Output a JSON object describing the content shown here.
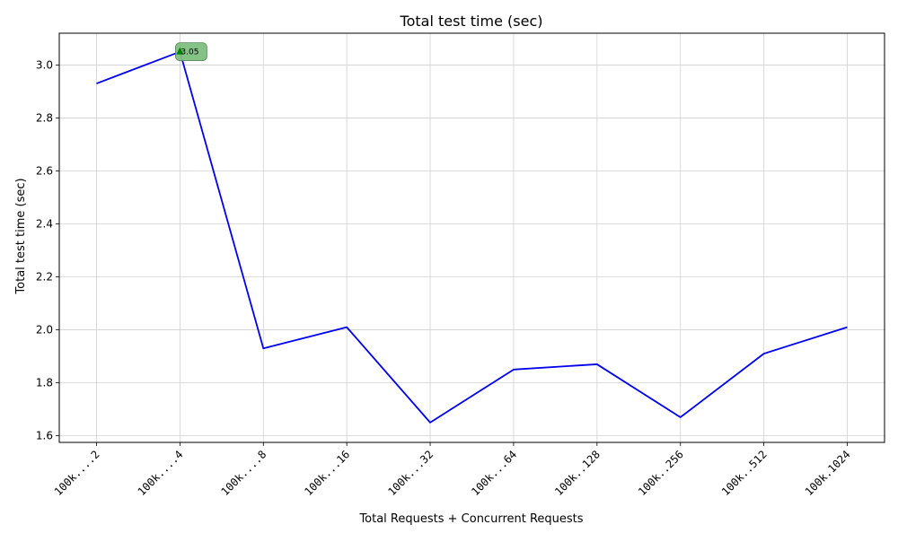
{
  "chart_data": {
    "type": "line",
    "title": "Total test time (sec)",
    "xlabel": "Total Requests + Concurrent Requests",
    "ylabel": "Total test time (sec)",
    "categories": [
      "100k....2",
      "100k....4",
      "100k....8",
      "100k...16",
      "100k...32",
      "100k...64",
      "100k..128",
      "100k..256",
      "100k..512",
      "100k.1024"
    ],
    "series": [
      {
        "values": [
          2.93,
          3.05,
          1.93,
          2.01,
          1.65,
          1.85,
          1.87,
          1.67,
          1.91,
          2.01
        ],
        "color": "#0000ee"
      }
    ],
    "ylim": [
      1.575,
      3.12
    ],
    "yticks": [
      1.6,
      1.8,
      2.0,
      2.2,
      2.4,
      2.6,
      2.8,
      3.0
    ],
    "grid": true,
    "annotation": {
      "text": "3.05",
      "category_index": 1,
      "value": 3.05,
      "box_color": "#7fbf7f",
      "marker_color": "#008000"
    }
  }
}
